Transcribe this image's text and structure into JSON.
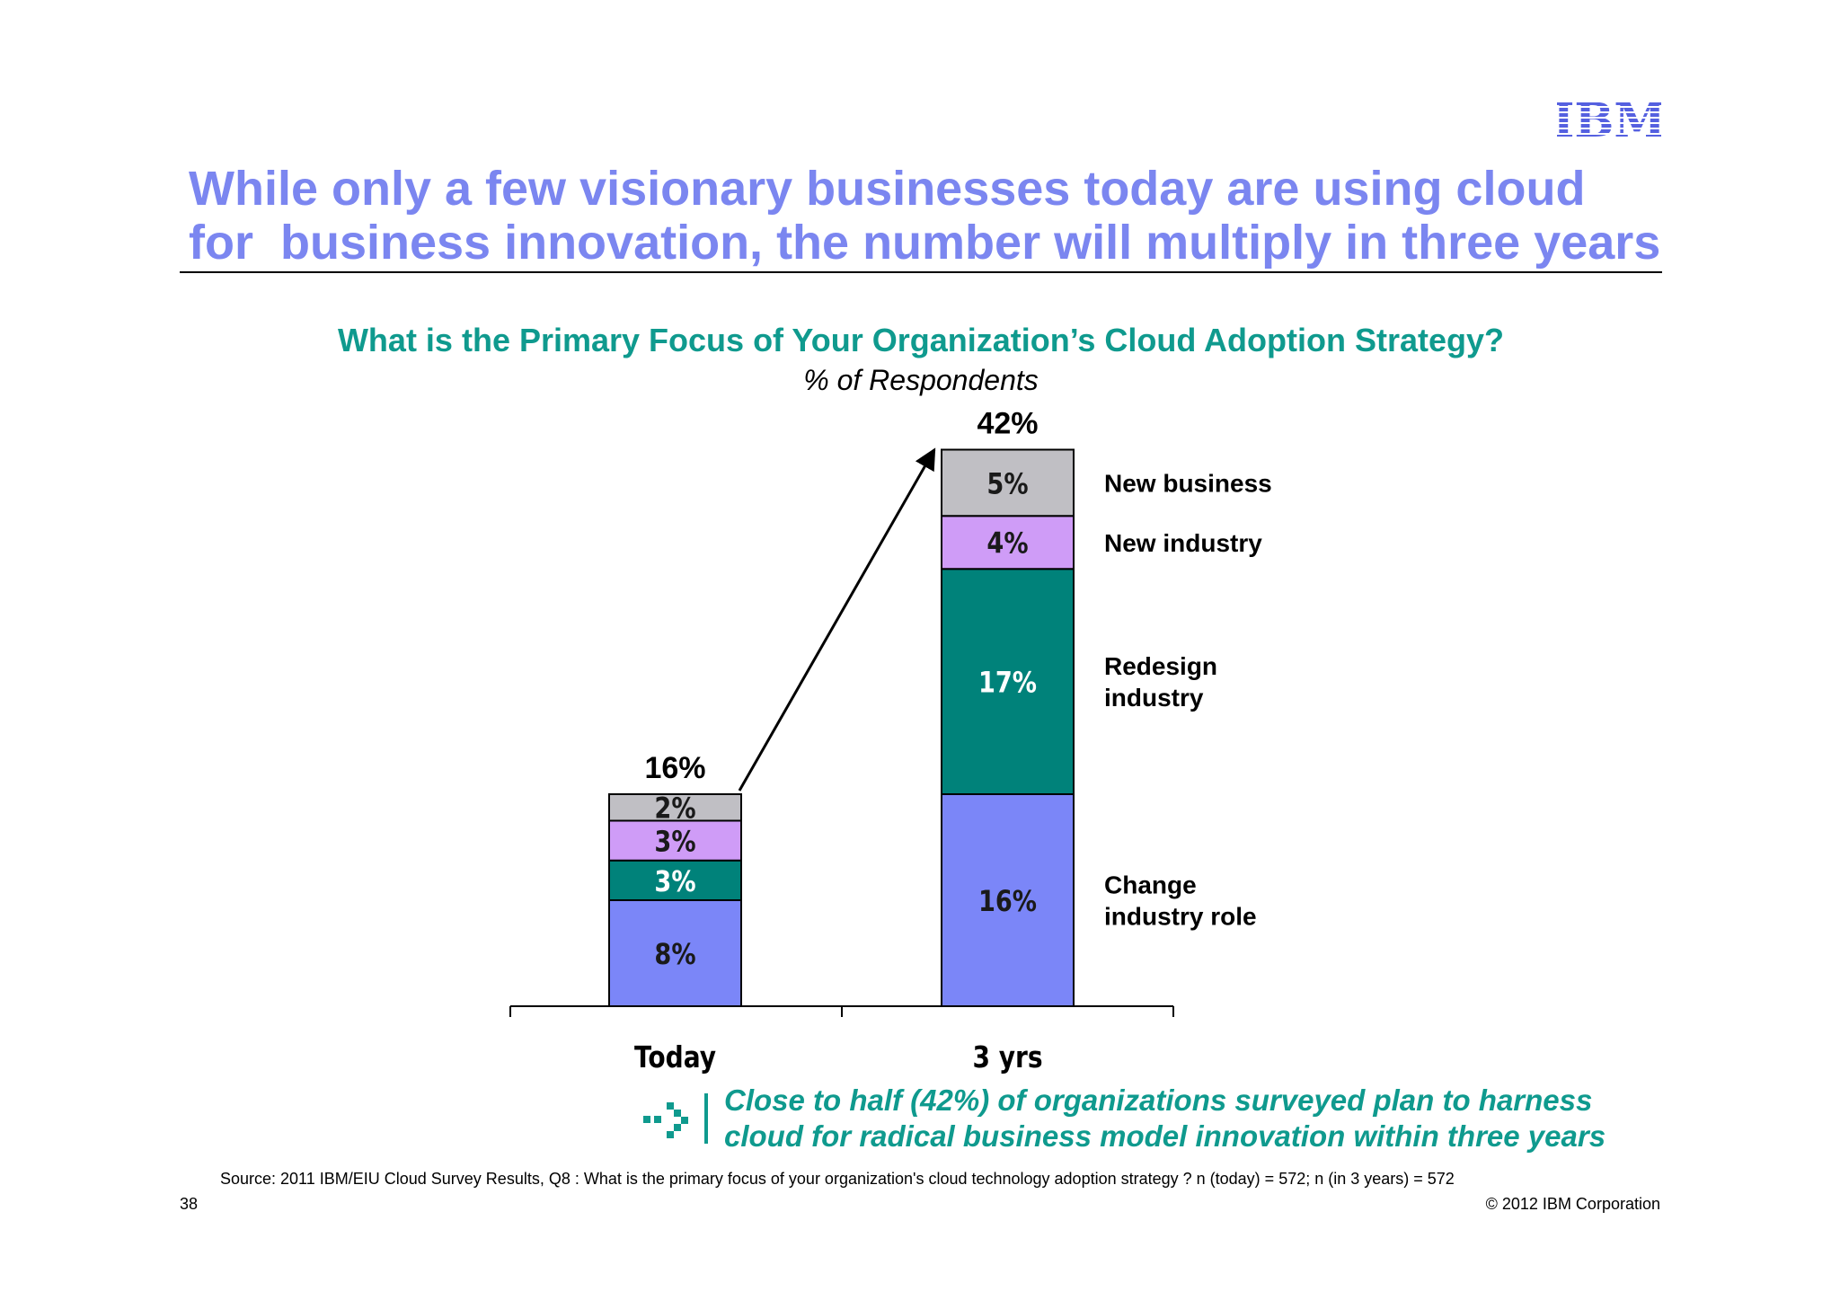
{
  "header": {
    "logo_text": "IBM",
    "title_lines": [
      "While only a few visionary businesses today are using cloud",
      "for  business innovation, the number will multiply in three years"
    ]
  },
  "chart_data": {
    "type": "bar",
    "stacked": true,
    "title": "What is the Primary Focus of Your Organization’s Cloud Adoption Strategy?",
    "subtitle": "% of Respondents",
    "categories": [
      "Today",
      "3 yrs"
    ],
    "totals": [
      16,
      42
    ],
    "total_labels": [
      "16%",
      "42%"
    ],
    "ylim": [
      0,
      42
    ],
    "series": [
      {
        "name": "Change\nindustry role",
        "values": [
          8,
          16
        ],
        "labels": [
          "8%",
          "16%"
        ],
        "color": "#7b86f8",
        "label_color": "#1a1a1a"
      },
      {
        "name": "Redesign\nindustry",
        "values": [
          3,
          17
        ],
        "labels": [
          "3%",
          "17%"
        ],
        "color": "#00827a",
        "label_color": "#ffffff"
      },
      {
        "name": "New industry",
        "values": [
          3,
          4
        ],
        "labels": [
          "3%",
          "4%"
        ],
        "color": "#cf9cf7",
        "label_color": "#1a1a1a"
      },
      {
        "name": "New business",
        "values": [
          2,
          5
        ],
        "labels": [
          "2%",
          "5%"
        ],
        "color": "#c0bfc4",
        "label_color": "#1a1a1a"
      }
    ],
    "legend_position": "right of last bar, aligned to segments",
    "arrow": "from Today total to 3 yrs total"
  },
  "callout": {
    "lines": [
      "Close to half (42%) of organizations surveyed plan to harness",
      "cloud for radical business model innovation within three years"
    ],
    "color": "#0f9a8e",
    "icon": "dotted-arrow-icon"
  },
  "footer": {
    "source": "Source: 2011 IBM/EIU Cloud Survey Results, Q8 : What is the primary focus of your organization's cloud technology adoption strategy ? n (today) = 572; n (in 3 years) = 572",
    "page_number": "38",
    "copyright": "© 2012 IBM Corporation"
  }
}
